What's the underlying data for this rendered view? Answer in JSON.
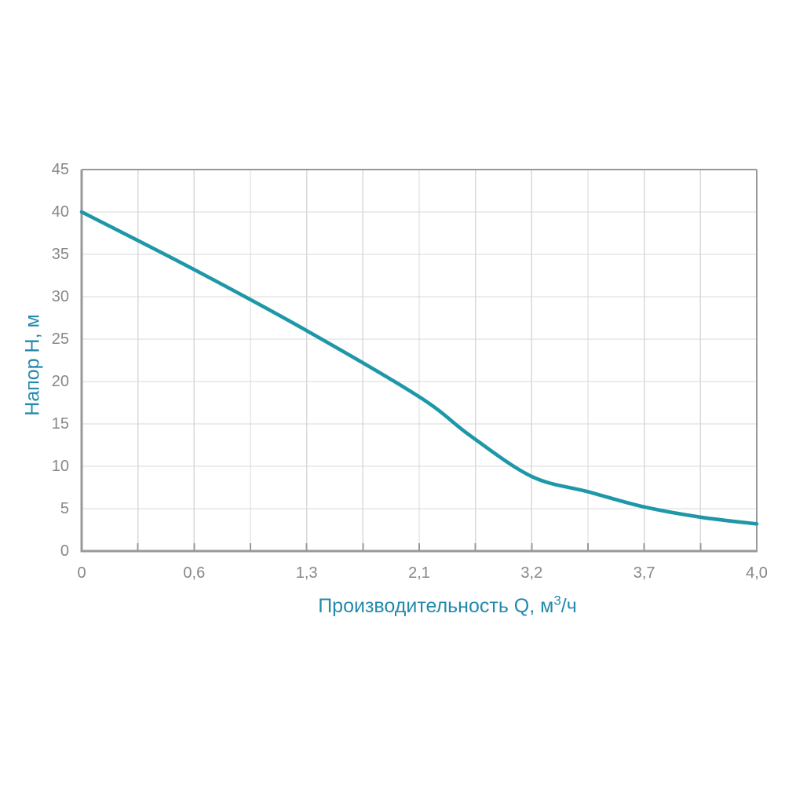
{
  "chart_data": {
    "type": "line",
    "title": "",
    "xlabel": "Производительность Q, м³/ч",
    "xlabel_parts": {
      "prefix": "Производительность Q, м",
      "sup": "3",
      "suffix": "/ч"
    },
    "ylabel": "Напор H, м",
    "x_tick_labels": [
      "0",
      "0,6",
      "1,3",
      "2,1",
      "3,2",
      "3,7",
      "4,0"
    ],
    "x_tick_values": [
      0,
      0.6,
      1.3,
      2.1,
      3.2,
      3.7,
      4.0
    ],
    "y_tick_labels": [
      "0",
      "5",
      "10",
      "15",
      "20",
      "25",
      "30",
      "35",
      "40",
      "45"
    ],
    "ylim": [
      0,
      45
    ],
    "y_step": 5,
    "grid": "on",
    "legend": "none",
    "x_scale_note": "x tick labels are evenly spaced on the axis; scale is piecewise-linear between labeled values; minor ticks and gridlines at midpoints",
    "series": [
      {
        "name": "pump-head-curve",
        "points": [
          [
            0,
            40
          ],
          [
            0.6,
            33.2
          ],
          [
            1.3,
            26
          ],
          [
            2.1,
            18.2
          ],
          [
            2.6,
            13.6
          ],
          [
            3.2,
            8.8
          ],
          [
            3.45,
            7.0
          ],
          [
            3.7,
            5.2
          ],
          [
            3.85,
            4.0
          ],
          [
            4.0,
            3.2
          ]
        ]
      }
    ],
    "colors": {
      "curve": "#1E97A8",
      "axis_title": "#2489AC",
      "tick_label": "#85878A",
      "axis_border": "#98999B",
      "gridline": "#D9D9D9",
      "background": "#FFFFFF"
    }
  }
}
